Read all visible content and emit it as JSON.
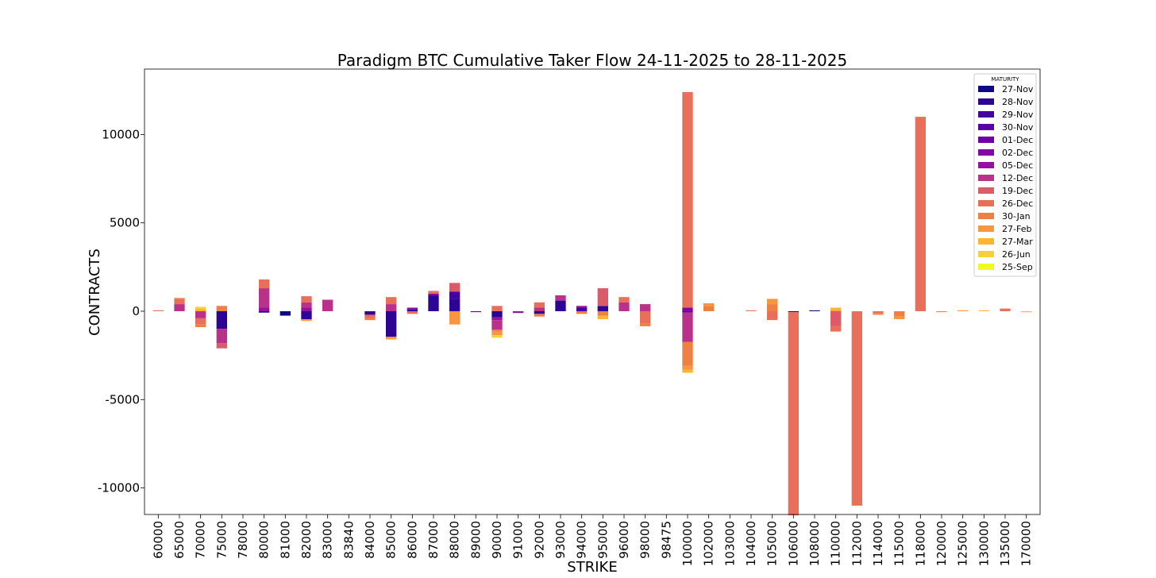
{
  "chart_data": {
    "type": "bar",
    "stacked": true,
    "title": "Paradigm BTC Cumulative Taker Flow 24-11-2025 to 28-11-2025",
    "xlabel": "STRIKE",
    "ylabel": "CONTRACTS",
    "ylim": [
      -11500,
      13700
    ],
    "yticks": [
      10000,
      5000,
      0,
      -5000,
      -10000
    ],
    "yticklabels": [
      "10000",
      "5000",
      "0",
      "-5000",
      "-10000"
    ],
    "legend": {
      "title": "MATURITY",
      "position": "top-right"
    },
    "grid": false,
    "categories": [
      "60000",
      "65000",
      "70000",
      "75000",
      "78000",
      "80000",
      "81000",
      "82000",
      "83000",
      "83840",
      "84000",
      "85000",
      "86000",
      "87000",
      "88000",
      "89000",
      "90000",
      "91000",
      "92000",
      "93000",
      "94000",
      "95000",
      "96000",
      "98000",
      "98475",
      "100000",
      "102000",
      "103000",
      "104000",
      "105000",
      "106000",
      "108000",
      "110000",
      "112000",
      "114000",
      "115000",
      "118000",
      "120000",
      "125000",
      "130000",
      "135000",
      "170000"
    ],
    "series": [
      {
        "name": "27-Nov",
        "color": "#0d0887",
        "values": [
          0,
          0,
          0,
          0,
          0,
          0,
          -250,
          0,
          0,
          0,
          0,
          0,
          0,
          0,
          0,
          0,
          0,
          0,
          0,
          0,
          0,
          0,
          0,
          0,
          0,
          0,
          0,
          0,
          0,
          0,
          -50,
          50,
          0,
          0,
          0,
          0,
          0,
          0,
          0,
          0,
          0,
          0
        ]
      },
      {
        "name": "28-Nov",
        "color": "#2c0594",
        "values": [
          0,
          0,
          0,
          -1000,
          0,
          -80,
          0,
          -450,
          0,
          0,
          -200,
          -1450,
          100,
          900,
          700,
          0,
          -350,
          0,
          -150,
          600,
          0,
          300,
          0,
          0,
          0,
          0,
          0,
          0,
          0,
          0,
          0,
          0,
          0,
          0,
          0,
          0,
          0,
          0,
          0,
          0,
          0,
          0
        ]
      },
      {
        "name": "29-Nov",
        "color": "#43039e",
        "values": [
          0,
          0,
          0,
          0,
          0,
          0,
          0,
          0,
          0,
          0,
          0,
          0,
          0,
          0,
          400,
          0,
          0,
          0,
          0,
          0,
          200,
          0,
          0,
          0,
          0,
          0,
          0,
          0,
          0,
          0,
          0,
          0,
          0,
          0,
          0,
          0,
          0,
          0,
          0,
          0,
          0,
          0
        ]
      },
      {
        "name": "30-Nov",
        "color": "#5901a5",
        "values": [
          0,
          0,
          0,
          0,
          0,
          0,
          0,
          0,
          0,
          0,
          0,
          0,
          0,
          0,
          0,
          -50,
          0,
          0,
          0,
          0,
          0,
          0,
          0,
          0,
          0,
          -80,
          0,
          0,
          0,
          0,
          0,
          0,
          0,
          0,
          0,
          0,
          0,
          0,
          0,
          0,
          0,
          0
        ]
      },
      {
        "name": "01-Dec",
        "color": "#6e00a8",
        "values": [
          0,
          0,
          0,
          0,
          0,
          0,
          0,
          0,
          0,
          0,
          0,
          0,
          0,
          0,
          0,
          0,
          0,
          0,
          0,
          0,
          0,
          0,
          0,
          0,
          0,
          0,
          0,
          0,
          0,
          0,
          0,
          0,
          0,
          0,
          0,
          0,
          0,
          0,
          0,
          0,
          0,
          0
        ]
      },
      {
        "name": "02-Dec",
        "color": "#8305a7",
        "values": [
          0,
          0,
          0,
          0,
          0,
          0,
          0,
          0,
          0,
          0,
          0,
          0,
          100,
          100,
          0,
          0,
          0,
          0,
          0,
          0,
          0,
          0,
          0,
          0,
          0,
          200,
          0,
          0,
          0,
          0,
          0,
          0,
          0,
          0,
          0,
          0,
          0,
          0,
          0,
          0,
          0,
          0
        ]
      },
      {
        "name": "05-Dec",
        "color": "#9511a1",
        "values": [
          0,
          0,
          0,
          0,
          0,
          200,
          0,
          200,
          0,
          0,
          0,
          0,
          0,
          0,
          0,
          0,
          -150,
          -100,
          0,
          0,
          100,
          0,
          0,
          0,
          0,
          0,
          0,
          0,
          0,
          0,
          0,
          0,
          0,
          0,
          0,
          0,
          0,
          0,
          0,
          0,
          0,
          0
        ]
      },
      {
        "name": "12-Dec",
        "color": "#b83289",
        "values": [
          0,
          400,
          -400,
          -800,
          0,
          1100,
          0,
          300,
          650,
          0,
          0,
          400,
          0,
          0,
          0,
          0,
          -550,
          0,
          200,
          300,
          0,
          0,
          500,
          400,
          0,
          -1650,
          0,
          0,
          0,
          0,
          0,
          0,
          0,
          0,
          0,
          0,
          0,
          0,
          0,
          0,
          0,
          0
        ]
      },
      {
        "name": "19-Dec",
        "color": "#db5c68",
        "values": [
          0,
          0,
          0,
          -300,
          0,
          0,
          0,
          0,
          0,
          0,
          0,
          0,
          0,
          0,
          500,
          0,
          0,
          0,
          0,
          0,
          0,
          1000,
          0,
          0,
          0,
          0,
          0,
          0,
          0,
          0,
          0,
          0,
          -850,
          0,
          0,
          0,
          0,
          0,
          0,
          0,
          0,
          0
        ]
      },
      {
        "name": "26-Dec",
        "color": "#e8705a",
        "values": [
          50,
          300,
          -350,
          0,
          0,
          500,
          0,
          350,
          0,
          0,
          -200,
          400,
          -150,
          150,
          0,
          0,
          300,
          0,
          300,
          0,
          0,
          0,
          300,
          -700,
          0,
          12200,
          0,
          0,
          50,
          -500,
          -11500,
          0,
          -300,
          -11000,
          -100,
          0,
          11000,
          0,
          0,
          0,
          150,
          0
        ]
      },
      {
        "name": "30-Jan",
        "color": "#ed8043",
        "values": [
          0,
          50,
          -150,
          300,
          0,
          0,
          0,
          0,
          0,
          0,
          -100,
          0,
          0,
          0,
          0,
          0,
          -100,
          0,
          -150,
          0,
          -150,
          -250,
          0,
          -150,
          0,
          -1350,
          300,
          0,
          0,
          400,
          0,
          0,
          0,
          0,
          -100,
          -300,
          0,
          -50,
          0,
          0,
          0,
          0
        ]
      },
      {
        "name": "27-Feb",
        "color": "#f89540",
        "values": [
          0,
          0,
          0,
          0,
          0,
          0,
          0,
          -100,
          0,
          0,
          0,
          -100,
          0,
          0,
          -750,
          0,
          -200,
          0,
          0,
          0,
          0,
          0,
          0,
          0,
          0,
          -200,
          150,
          0,
          0,
          300,
          0,
          0,
          50,
          0,
          0,
          -150,
          0,
          0,
          50,
          0,
          0,
          0
        ]
      },
      {
        "name": "27-Mar",
        "color": "#fdb42f",
        "values": [
          0,
          0,
          150,
          0,
          0,
          0,
          0,
          0,
          0,
          0,
          0,
          -50,
          0,
          0,
          0,
          0,
          0,
          0,
          0,
          0,
          0,
          -200,
          0,
          0,
          0,
          -200,
          0,
          0,
          0,
          0,
          0,
          0,
          150,
          0,
          0,
          0,
          0,
          0,
          0,
          50,
          0,
          -50
        ]
      },
      {
        "name": "26-Jun",
        "color": "#f7d13c",
        "values": [
          0,
          0,
          100,
          0,
          0,
          0,
          0,
          0,
          0,
          0,
          0,
          0,
          0,
          0,
          0,
          0,
          -150,
          0,
          0,
          0,
          0,
          0,
          0,
          0,
          0,
          0,
          0,
          0,
          0,
          0,
          0,
          0,
          0,
          0,
          0,
          0,
          0,
          0,
          0,
          0,
          0,
          0
        ]
      },
      {
        "name": "25-Sep",
        "color": "#f0f921",
        "values": [
          0,
          0,
          0,
          0,
          0,
          0,
          0,
          0,
          0,
          0,
          0,
          0,
          0,
          0,
          0,
          0,
          0,
          0,
          0,
          0,
          0,
          0,
          0,
          0,
          0,
          0,
          0,
          0,
          0,
          0,
          0,
          0,
          0,
          0,
          0,
          0,
          0,
          0,
          0,
          0,
          0,
          0
        ]
      }
    ]
  }
}
